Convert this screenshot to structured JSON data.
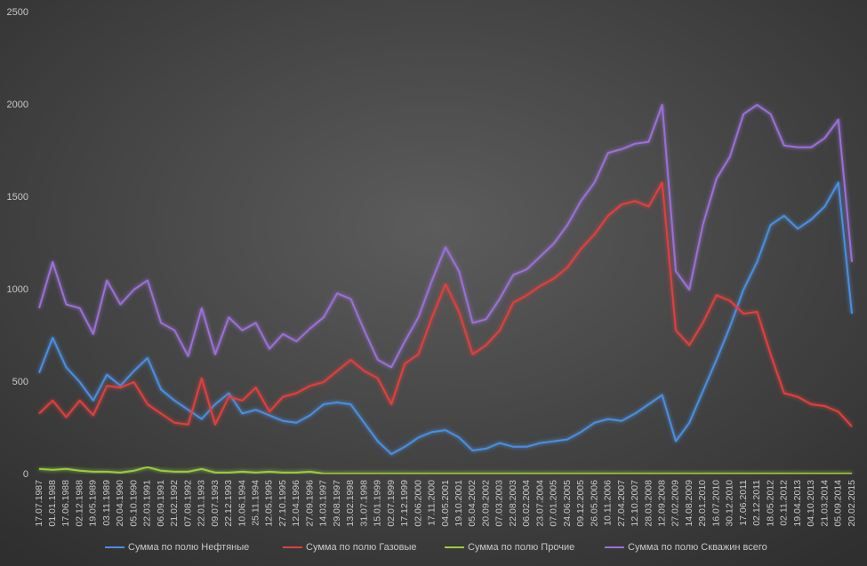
{
  "chart_data": {
    "type": "line",
    "categories": [
      "17.07.1987",
      "01.01.1988",
      "17.06.1988",
      "02.12.1988",
      "19.05.1989",
      "03.11.1989",
      "20.04.1990",
      "05.10.1990",
      "22.03.1991",
      "06.09.1991",
      "21.02.1992",
      "07.08.1992",
      "22.01.1993",
      "09.07.1993",
      "22.12.1993",
      "10.06.1994",
      "25.11.1994",
      "12.05.1995",
      "27.10.1995",
      "12.04.1996",
      "27.09.1996",
      "14.03.1997",
      "29.08.1997",
      "13.02.1998",
      "31.07.1998",
      "15.01.1999",
      "02.07.1999",
      "17.12.1999",
      "02.06.2000",
      "17.11.2000",
      "04.05.2001",
      "19.10.2001",
      "05.04.2002",
      "20.09.2002",
      "07.03.2003",
      "22.08.2003",
      "06.02.2004",
      "23.07.2004",
      "07.01.2005",
      "24.06.2005",
      "09.12.2005",
      "26.05.2006",
      "10.11.2006",
      "27.04.2007",
      "12.10.2007",
      "28.03.2008",
      "12.09.2008",
      "27.02.2009",
      "14.08.2009",
      "29.01.2010",
      "16.07.2010",
      "30.12.2010",
      "17.06.2011",
      "02.12.2011",
      "18.05.2012",
      "02.11.2012",
      "19.04.2013",
      "04.10.2013",
      "21.03.2014",
      "05.09.2014",
      "20.02.2015"
    ],
    "series": [
      {
        "name": "Сумма по полю Нефтяные",
        "color": "#4a8fe0",
        "values": [
          550,
          740,
          580,
          500,
          400,
          540,
          480,
          560,
          630,
          460,
          400,
          350,
          300,
          380,
          440,
          330,
          350,
          320,
          290,
          280,
          320,
          380,
          390,
          380,
          280,
          180,
          110,
          150,
          200,
          230,
          240,
          200,
          130,
          140,
          170,
          150,
          150,
          170,
          180,
          190,
          230,
          280,
          300,
          290,
          330,
          380,
          430,
          180,
          280,
          450,
          620,
          800,
          1000,
          1150,
          1350,
          1400,
          1330,
          1380,
          1450,
          1580,
          870
        ]
      },
      {
        "name": "Сумма по полю Газовые",
        "color": "#e0403c",
        "values": [
          330,
          400,
          310,
          400,
          320,
          480,
          470,
          500,
          380,
          330,
          280,
          270,
          520,
          270,
          420,
          400,
          470,
          340,
          420,
          440,
          480,
          500,
          560,
          620,
          560,
          520,
          380,
          600,
          650,
          850,
          1030,
          880,
          650,
          700,
          780,
          930,
          970,
          1020,
          1060,
          1120,
          1220,
          1300,
          1400,
          1460,
          1480,
          1450,
          1580,
          780,
          700,
          820,
          970,
          940,
          870,
          880,
          650,
          440,
          420,
          380,
          370,
          340,
          260
        ]
      },
      {
        "name": "Сумма по полю Прочие",
        "color": "#9acd3c",
        "values": [
          30,
          25,
          30,
          20,
          15,
          15,
          10,
          20,
          40,
          20,
          15,
          15,
          30,
          10,
          10,
          15,
          10,
          15,
          10,
          10,
          15,
          5,
          5,
          5,
          5,
          5,
          5,
          5,
          5,
          5,
          5,
          5,
          5,
          5,
          5,
          5,
          5,
          5,
          5,
          5,
          5,
          5,
          5,
          5,
          5,
          5,
          5,
          5,
          5,
          5,
          5,
          5,
          5,
          5,
          5,
          5,
          5,
          5,
          5,
          5,
          5
        ]
      },
      {
        "name": "Сумма по полю Скважин всего",
        "color": "#9b6fd6",
        "values": [
          900,
          1150,
          920,
          900,
          760,
          1050,
          920,
          1000,
          1050,
          820,
          780,
          640,
          900,
          650,
          850,
          780,
          820,
          680,
          760,
          720,
          790,
          850,
          980,
          950,
          780,
          620,
          580,
          720,
          850,
          1050,
          1230,
          1100,
          820,
          840,
          950,
          1080,
          1110,
          1180,
          1250,
          1350,
          1480,
          1580,
          1740,
          1760,
          1790,
          1800,
          2000,
          1100,
          1000,
          1350,
          1600,
          1720,
          1950,
          2000,
          1950,
          1780,
          1770,
          1770,
          1820,
          1920,
          1150
        ]
      }
    ],
    "ylim": [
      0,
      2500
    ],
    "yticks": [
      0,
      500,
      1000,
      1500,
      2000,
      2500
    ],
    "grid": false
  }
}
